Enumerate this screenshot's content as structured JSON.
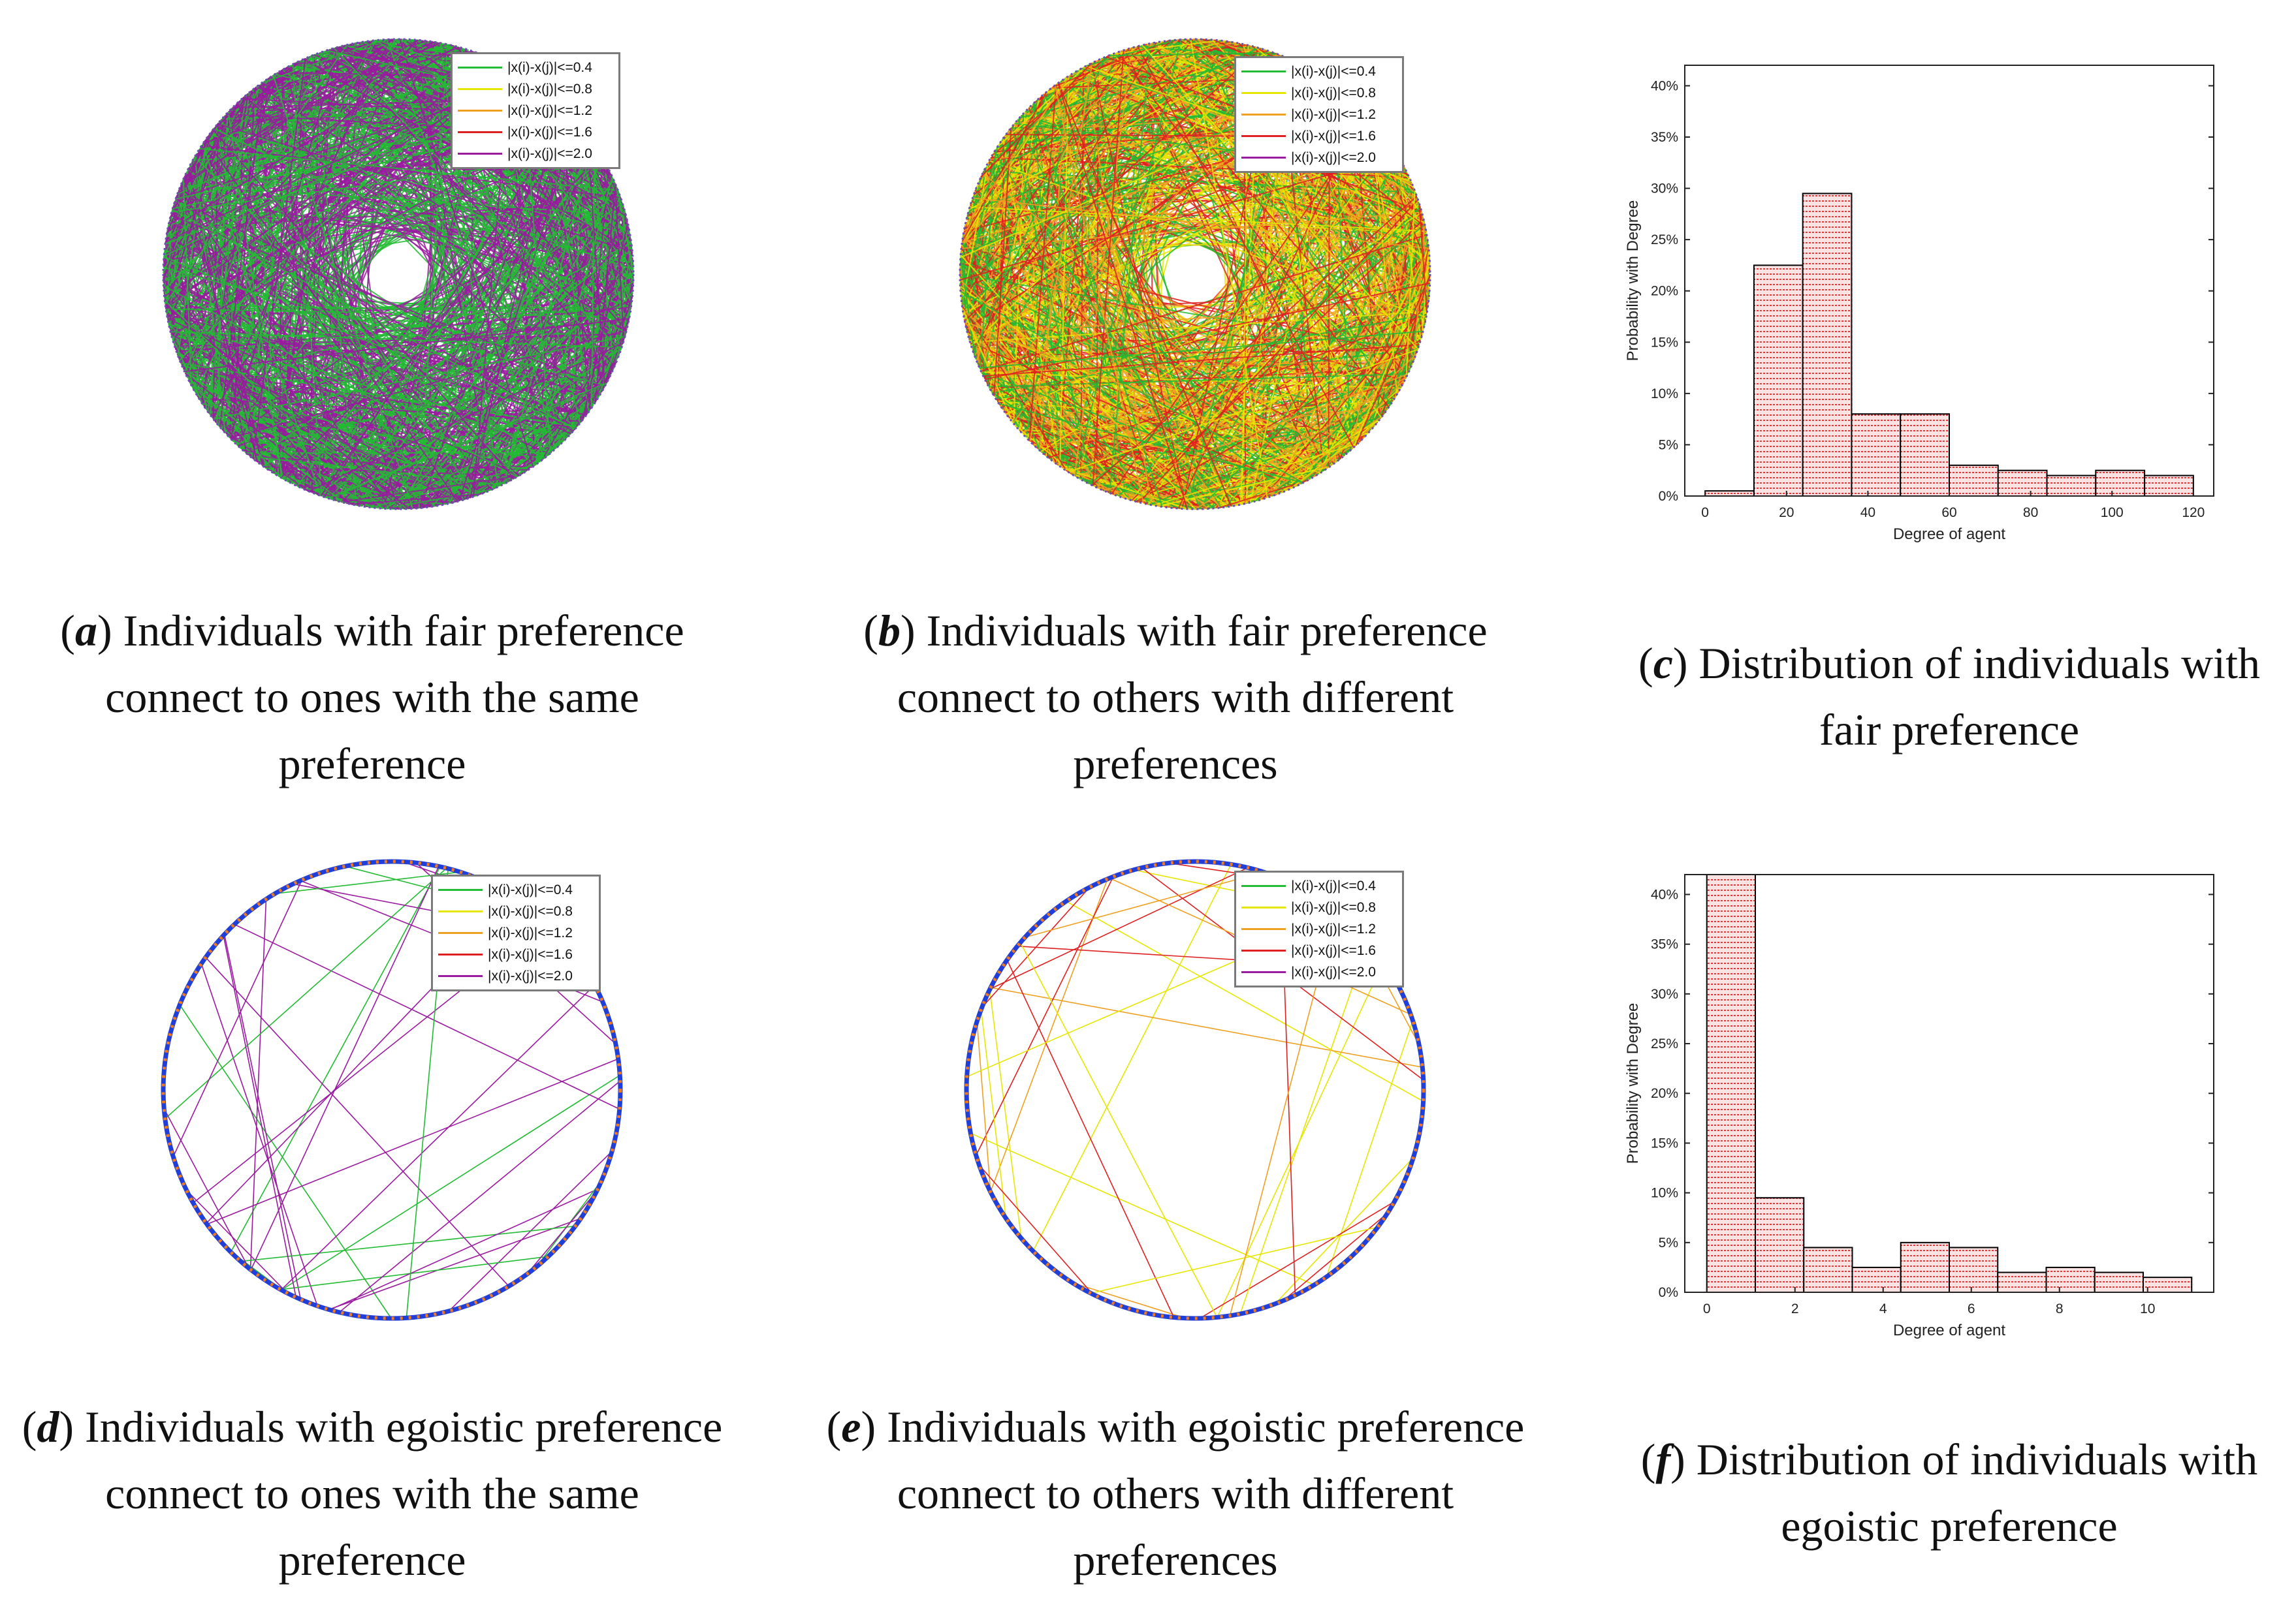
{
  "captions": {
    "a": {
      "label": "a",
      "text": "Individuals with fair preference connect to ones with the same preference"
    },
    "b": {
      "label": "b",
      "text": "Individuals with fair preference connect to others with different preferences"
    },
    "c": {
      "label": "c",
      "text": "Distribution of individuals with fair preference"
    },
    "d": {
      "label": "d",
      "text": "Individuals with egoistic preference connect to ones with the same preference"
    },
    "e": {
      "label": "e",
      "text": "Individuals with egoistic preference connect to others with different preferences"
    },
    "f": {
      "label": "f",
      "text": "Distribution of individuals with egoistic preference"
    }
  },
  "legend": {
    "items": [
      {
        "label": "|x(i)-x(j)|<=0.4",
        "color": "#22bb33"
      },
      {
        "label": "|x(i)-x(j)|<=0.8",
        "color": "#e6e600"
      },
      {
        "label": "|x(i)-x(j)|<=1.2",
        "color": "#f0a020"
      },
      {
        "label": "|x(i)-x(j)|<=1.6",
        "color": "#e02020"
      },
      {
        "label": "|x(i)-x(j)|<=2.0",
        "color": "#9a1aa0"
      }
    ]
  },
  "chart_data": [
    {
      "id": "a",
      "type": "network",
      "description_legend": "edge color by preference difference",
      "dominant_edges": [
        "|x(i)-x(j)|<=0.4",
        "|x(i)-x(j)|<=2.0"
      ],
      "density": "dense"
    },
    {
      "id": "b",
      "type": "network",
      "dominant_edges": [
        "|x(i)-x(j)|<=0.4",
        "|x(i)-x(j)|<=0.8",
        "|x(i)-x(j)|<=1.2",
        "|x(i)-x(j)|<=1.6"
      ],
      "density": "dense"
    },
    {
      "id": "c",
      "type": "bar",
      "xlabel": "Degree of agent",
      "ylabel": "Probability with Degree",
      "xlim": [
        -5,
        125
      ],
      "ylim": [
        0,
        0.42
      ],
      "xticks": [
        0,
        20,
        40,
        60,
        80,
        100,
        120
      ],
      "xtick_labels": [
        "0",
        "20",
        "40",
        "60",
        "80",
        "100",
        "120"
      ],
      "yticks": [
        0,
        0.05,
        0.1,
        0.15,
        0.2,
        0.25,
        0.3,
        0.35,
        0.4
      ],
      "ytick_labels": [
        "0%",
        "5%",
        "10%",
        "15%",
        "20%",
        "25%",
        "30%",
        "35%",
        "40%"
      ],
      "bin_edges": [
        0,
        12,
        24,
        36,
        48,
        60,
        72,
        84,
        96,
        108,
        120
      ],
      "values": [
        0.005,
        0.225,
        0.295,
        0.08,
        0.08,
        0.03,
        0.025,
        0.02,
        0.025,
        0.02
      ],
      "bar_color": "#f08080"
    },
    {
      "id": "d",
      "type": "network",
      "dominant_edges": [
        "|x(i)-x(j)|<=0.4",
        "|x(i)-x(j)|<=2.0"
      ],
      "density": "sparse"
    },
    {
      "id": "e",
      "type": "network",
      "dominant_edges": [
        "|x(i)-x(j)|<=0.8",
        "|x(i)-x(j)|<=1.2",
        "|x(i)-x(j)|<=1.6"
      ],
      "density": "sparse"
    },
    {
      "id": "f",
      "type": "bar",
      "xlabel": "Degree of agent",
      "ylabel": "Probability with Degree",
      "xlim": [
        -0.5,
        11.5
      ],
      "ylim": [
        0,
        0.42
      ],
      "xticks": [
        0,
        2,
        4,
        6,
        8,
        10
      ],
      "xtick_labels": [
        "0",
        "2",
        "4",
        "6",
        "8",
        "10"
      ],
      "yticks": [
        0,
        0.05,
        0.1,
        0.15,
        0.2,
        0.25,
        0.3,
        0.35,
        0.4
      ],
      "ytick_labels": [
        "0%",
        "5%",
        "10%",
        "15%",
        "20%",
        "25%",
        "30%",
        "35%",
        "40%"
      ],
      "bin_edges": [
        0,
        1.1,
        2.2,
        3.3,
        4.4,
        5.5,
        6.6,
        7.7,
        8.8,
        9.9,
        11.0
      ],
      "values": [
        0.42,
        0.095,
        0.045,
        0.025,
        0.05,
        0.045,
        0.02,
        0.025,
        0.02,
        0.015
      ],
      "bar_color": "#f08080"
    }
  ]
}
